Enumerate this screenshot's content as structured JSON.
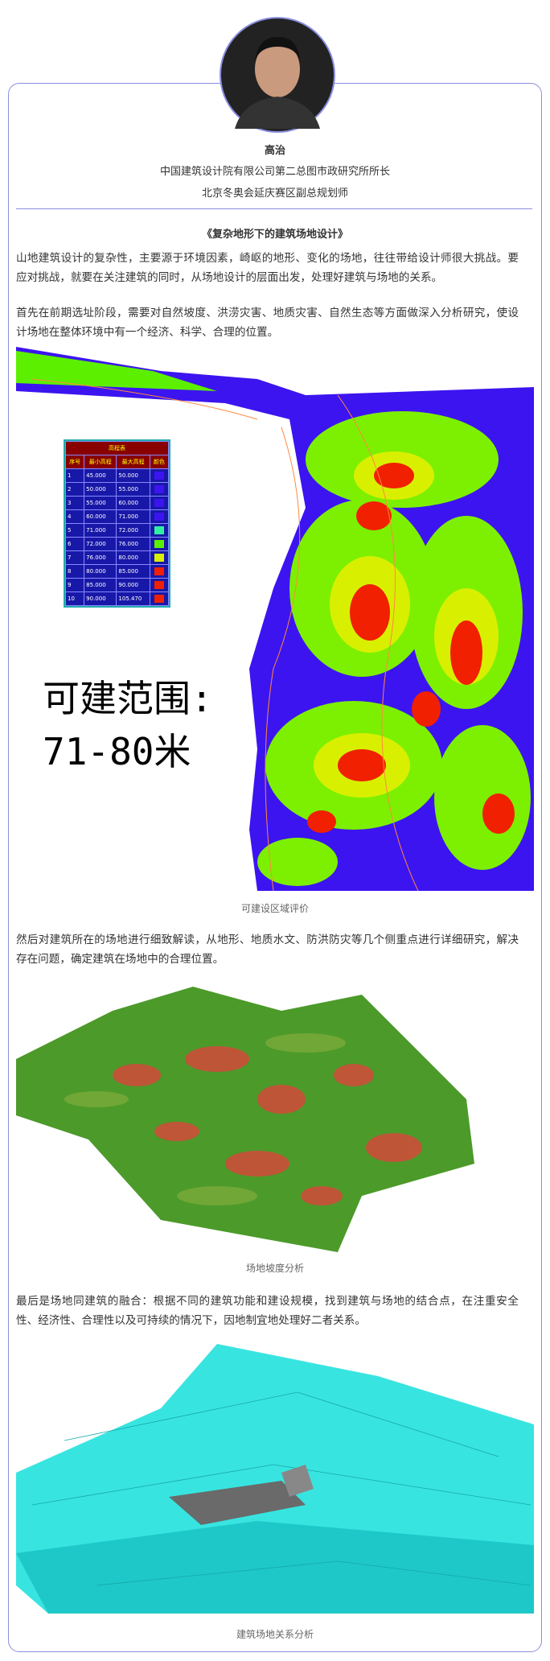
{
  "header": {
    "name": "高治",
    "titles": [
      "中国建筑设计院有限公司第二总图市政研究所所长",
      "北京冬奥会延庆赛区副总规划师"
    ]
  },
  "article": {
    "title": "《复杂地形下的建筑场地设计》",
    "paragraphs": [
      "山地建筑设计的复杂性，主要源于环境因素，崎岖的地形、变化的场地，往往带给设计师很大挑战。要应对挑战，就要在关注建筑的同时，从场地设计的层面出发，处理好建筑与场地的关系。",
      "首先在前期选址阶段，需要对自然坡度、洪涝灾害、地质灾害、自然生态等方面做深入分析研究，使设计场地在整体环境中有一个经济、科学、合理的位置。",
      "然后对建筑所在的场地进行细致解读，从地形、地质水文、防洪防灾等几个侧重点进行详细研究，解决存在问题，确定建筑在场地中的合理位置。",
      "最后是场地同建筑的融合：根据不同的建筑功能和建设规模，找到建筑与场地的结合点，在注重安全性、经济性、合理性以及可持续的情况下，因地制宜地处理好二者关系。"
    ],
    "figures": [
      {
        "caption": "可建设区域评价",
        "legend": {
          "title": "高程表",
          "columns": [
            "序号",
            "最小高程",
            "最大高程",
            "颜色"
          ],
          "rows": [
            [
              "1",
              "45.000",
              "50.000"
            ],
            [
              "2",
              "50.000",
              "55.000"
            ],
            [
              "3",
              "55.000",
              "60.000"
            ],
            [
              "4",
              "60.000",
              "71.000"
            ],
            [
              "5",
              "71.000",
              "72.000"
            ],
            [
              "6",
              "72.000",
              "76.000"
            ],
            [
              "7",
              "76.000",
              "80.000"
            ],
            [
              "8",
              "80.000",
              "85.000"
            ],
            [
              "9",
              "85.000",
              "90.000"
            ],
            [
              "10",
              "90.000",
              "105.470"
            ]
          ]
        },
        "overlay": [
          "可建范围:",
          "71-80米"
        ]
      },
      {
        "caption": "场地坡度分析"
      },
      {
        "caption": "建筑场地关系分析"
      }
    ]
  }
}
